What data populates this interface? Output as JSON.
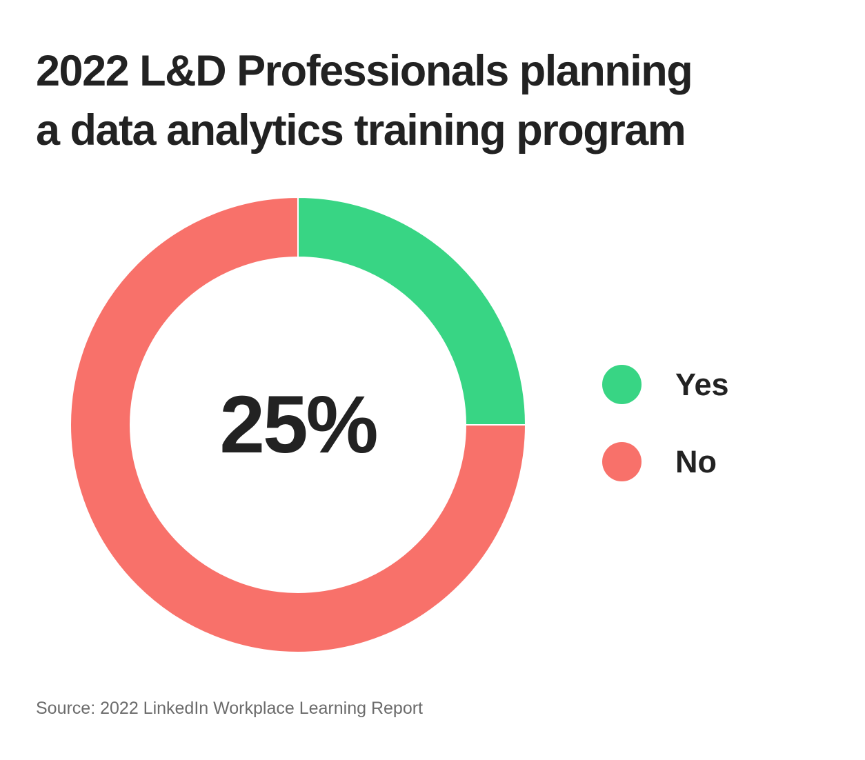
{
  "title_lines": [
    "2022 L&D Professionals planning",
    "a data analytics training program"
  ],
  "chart_data": {
    "type": "pie",
    "title": "2022 L&D Professionals planning a data analytics training program",
    "center_label": "25%",
    "categories": [
      "Yes",
      "No"
    ],
    "values": [
      25,
      75
    ],
    "unit": "%",
    "colors": [
      "#38d584",
      "#f8716a"
    ],
    "legend_position": "right"
  },
  "source": "Source: 2022 LinkedIn Workplace Learning Report"
}
